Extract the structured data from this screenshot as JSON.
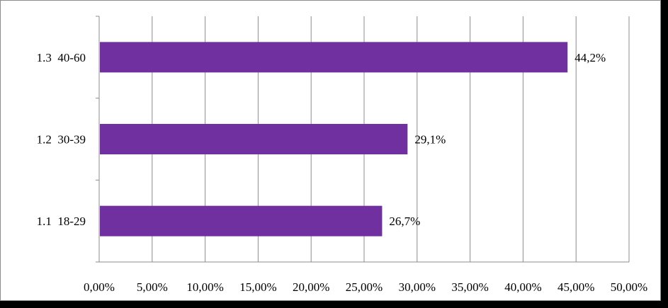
{
  "chart_data": {
    "type": "bar",
    "orientation": "horizontal",
    "title": "",
    "xlabel": "",
    "ylabel": "",
    "categories": [
      "1.1  18-29",
      "1.2  30-39",
      "1.3  40-60"
    ],
    "values": [
      26.7,
      29.1,
      44.2
    ],
    "data_labels": [
      "26,7%",
      "29,1%",
      "44,2%"
    ],
    "xlim": [
      0,
      50
    ],
    "x_ticks": [
      0,
      5,
      10,
      15,
      20,
      25,
      30,
      35,
      40,
      45,
      50
    ],
    "x_tick_labels": [
      "0,00%",
      "5,00%",
      "10,00%",
      "15,00%",
      "20,00%",
      "25,00%",
      "30,00%",
      "35,00%",
      "40,00%",
      "45,00%",
      "50,00%"
    ],
    "grid": "vertical",
    "legend": "none",
    "bar_color": "#7030a0"
  }
}
